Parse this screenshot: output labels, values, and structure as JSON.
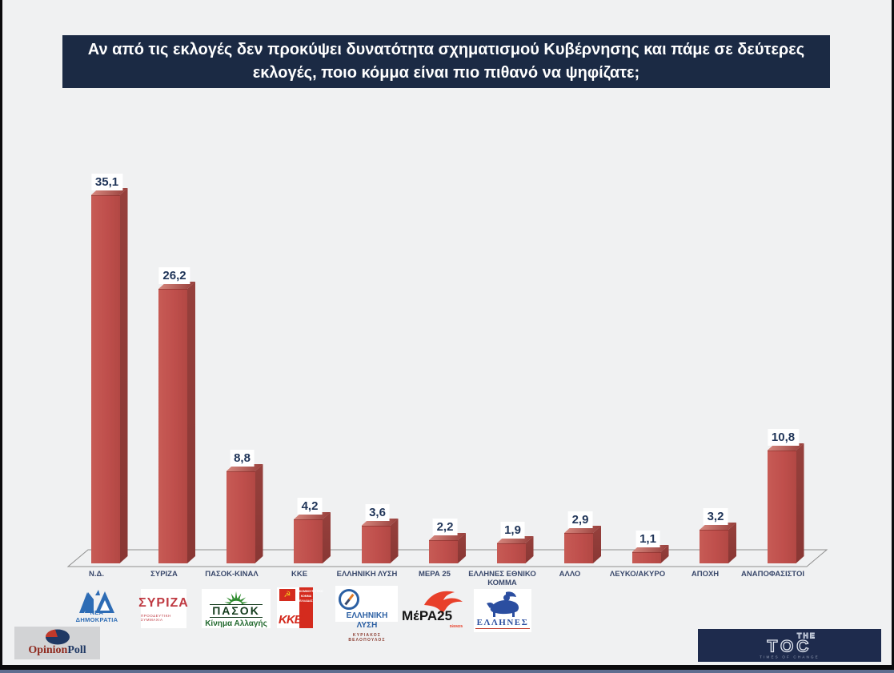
{
  "title": {
    "lines": [
      "Αν από τις εκλογές δεν προκύψει δυνατότητα σχηματισμού Κυβέρνησης και πάμε σε δεύτερες",
      "εκλογές, ποιο κόμμα είναι πιο πιθανό να ψηφίζατε;"
    ]
  },
  "chart_data": {
    "type": "bar",
    "title": "Αν από τις εκλογές δεν προκύψει δυνατότητα σχηματισμού Κυβέρνησης και πάμε σε δεύτερες εκλογές, ποιο κόμμα είναι πιο πιθανό να ψηφίζατε;",
    "categories": [
      "Ν.Δ.",
      "ΣΥΡΙΖΑ",
      "ΠΑΣΟΚ-ΚΙΝΑΛ",
      "ΚΚΕ",
      "ΕΛΛΗΝΙΚΗ ΛΥΣΗ",
      "ΜΕΡΑ 25",
      "ΕΛΛΗΝΕΣ ΕΘΝΙΚΟ ΚΟΜΜΑ",
      "ΑΛΛΟ",
      "ΛΕΥΚΟ/ΑΚΥΡΟ",
      "ΑΠΟΧΗ",
      "ΑΝΑΠΟΦΑΣΙΣΤΟΙ"
    ],
    "values": [
      35.1,
      26.2,
      8.8,
      4.2,
      3.6,
      2.2,
      1.9,
      2.9,
      1.1,
      3.2,
      10.8
    ],
    "value_labels": [
      "35,1",
      "26,2",
      "8,8",
      "4,2",
      "3,6",
      "2,2",
      "1,9",
      "2,9",
      "1,1",
      "3,2",
      "10,8"
    ],
    "xlabel": "",
    "ylabel": "",
    "ylim": [
      0,
      38
    ],
    "grid": false,
    "legend": false,
    "style": "3d-column",
    "bar_color": "#bf4f4c",
    "bar_side_color": "#8e3a37",
    "label_color": "#1f3458"
  },
  "logos": {
    "nd": {
      "text": "ΝΕΑ ΔΗΜΟΚΡΑΤΙΑ"
    },
    "syriza": {
      "text": "ΣΥΡΙΖΑ",
      "sub": "ΠΡΟΟΔΕΥΤΙΚΗ ΣΥΜΜΑΧΙΑ"
    },
    "pasok": {
      "text": "ΠΑΣΟΚ",
      "sub": "Κίνημα Αλλαγής"
    },
    "kke": {
      "text": "ΚΚΕ",
      "flag": "☭",
      "side_lines": [
        "ΚΟΜΜΟΥΝΙΣΤΙΚΟ",
        "ΚΟΜΜΑ",
        "ΕΛΛΑΔΑΣ"
      ]
    },
    "elliniki_lysi": {
      "line1": "ΕΛΛΗΝΙΚΗ",
      "line2": "ΛΥΣΗ",
      "sub": "ΚΥΡΙΑΚΟΣ ΒΕΛΟΠΟΥΛΟΣ"
    },
    "mera25": {
      "text": "ΜέΡΑ25",
      "sub": "DiEM25"
    },
    "ellines": {
      "text": "ΕΛΛΗΝΕΣ"
    },
    "opinionpoll": {
      "part1": "Opinion",
      "part2": "Poll"
    },
    "thetoc": {
      "the": "THE",
      "toc": "TOC",
      "sub": "TIMES OF CHANGE"
    }
  },
  "colors": {
    "background": "#f0f1f2",
    "banner": "#1b2a44",
    "bar_face": "#bf4f4c",
    "bar_side": "#8e3a37",
    "value_text": "#1f3458",
    "category_text": "#39486b"
  }
}
